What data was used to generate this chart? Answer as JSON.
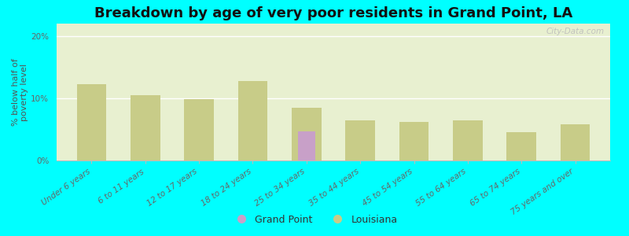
{
  "title": "Breakdown by age of very poor residents in Grand Point, LA",
  "ylabel": "% below half of\npoverty level",
  "background_color": "#00FFFF",
  "plot_bg_top_color": "#f0f5e0",
  "plot_bg_bottom_color": "#d8ecd8",
  "categories": [
    "Under 6 years",
    "6 to 11 years",
    "12 to 17 years",
    "18 to 24 years",
    "25 to 34 years",
    "35 to 44 years",
    "45 to 54 years",
    "55 to 64 years",
    "65 to 74 years",
    "75 years and over"
  ],
  "grand_point_values": [
    0,
    0,
    0,
    0,
    4.7,
    0,
    0,
    0,
    0,
    0
  ],
  "louisiana_values": [
    12.3,
    10.5,
    9.8,
    12.8,
    8.5,
    6.5,
    6.2,
    6.4,
    4.6,
    5.8
  ],
  "grand_point_color": "#c8a0c8",
  "louisiana_color": "#c8cc88",
  "ylim": [
    0,
    22
  ],
  "yticks": [
    0,
    10,
    20
  ],
  "ytick_labels": [
    "0%",
    "10%",
    "20%"
  ],
  "bar_width": 0.55,
  "title_fontsize": 13,
  "axis_label_fontsize": 8,
  "tick_fontsize": 7.5,
  "watermark": "City-Data.com",
  "legend_grand_point": "Grand Point",
  "legend_louisiana": "Louisiana"
}
